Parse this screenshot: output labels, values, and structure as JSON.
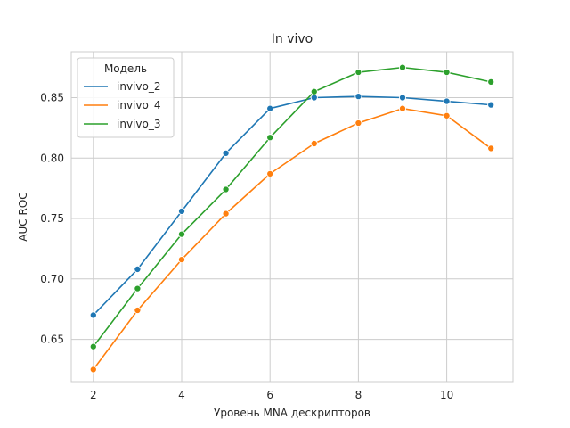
{
  "chart_data": {
    "type": "line",
    "title": "In vivo",
    "xlabel": "Уровень MNA дескрипторов",
    "ylabel": "AUC ROC",
    "xlim": [
      1.5,
      11.5
    ],
    "ylim": [
      0.615,
      0.888
    ],
    "xticks": [
      2,
      4,
      6,
      8,
      10
    ],
    "yticks": [
      0.65,
      0.7,
      0.75,
      0.8,
      0.85
    ],
    "grid": true,
    "legend": {
      "title": "Модель",
      "placement": "top-left"
    },
    "x": [
      2,
      3,
      4,
      5,
      6,
      7,
      8,
      9,
      10,
      11
    ],
    "series": [
      {
        "name": "invivo_2",
        "color": "#1f77b4",
        "values": [
          0.67,
          0.708,
          0.756,
          0.804,
          0.841,
          0.85,
          0.851,
          0.85,
          0.847,
          0.844
        ]
      },
      {
        "name": "invivo_4",
        "color": "#ff7f0e",
        "values": [
          0.625,
          0.674,
          0.716,
          0.754,
          0.787,
          0.812,
          0.829,
          0.841,
          0.835,
          0.808
        ]
      },
      {
        "name": "invivo_3",
        "color": "#2ca02c",
        "values": [
          0.644,
          0.692,
          0.737,
          0.774,
          0.817,
          0.855,
          0.871,
          0.875,
          0.871,
          0.863
        ]
      }
    ]
  }
}
